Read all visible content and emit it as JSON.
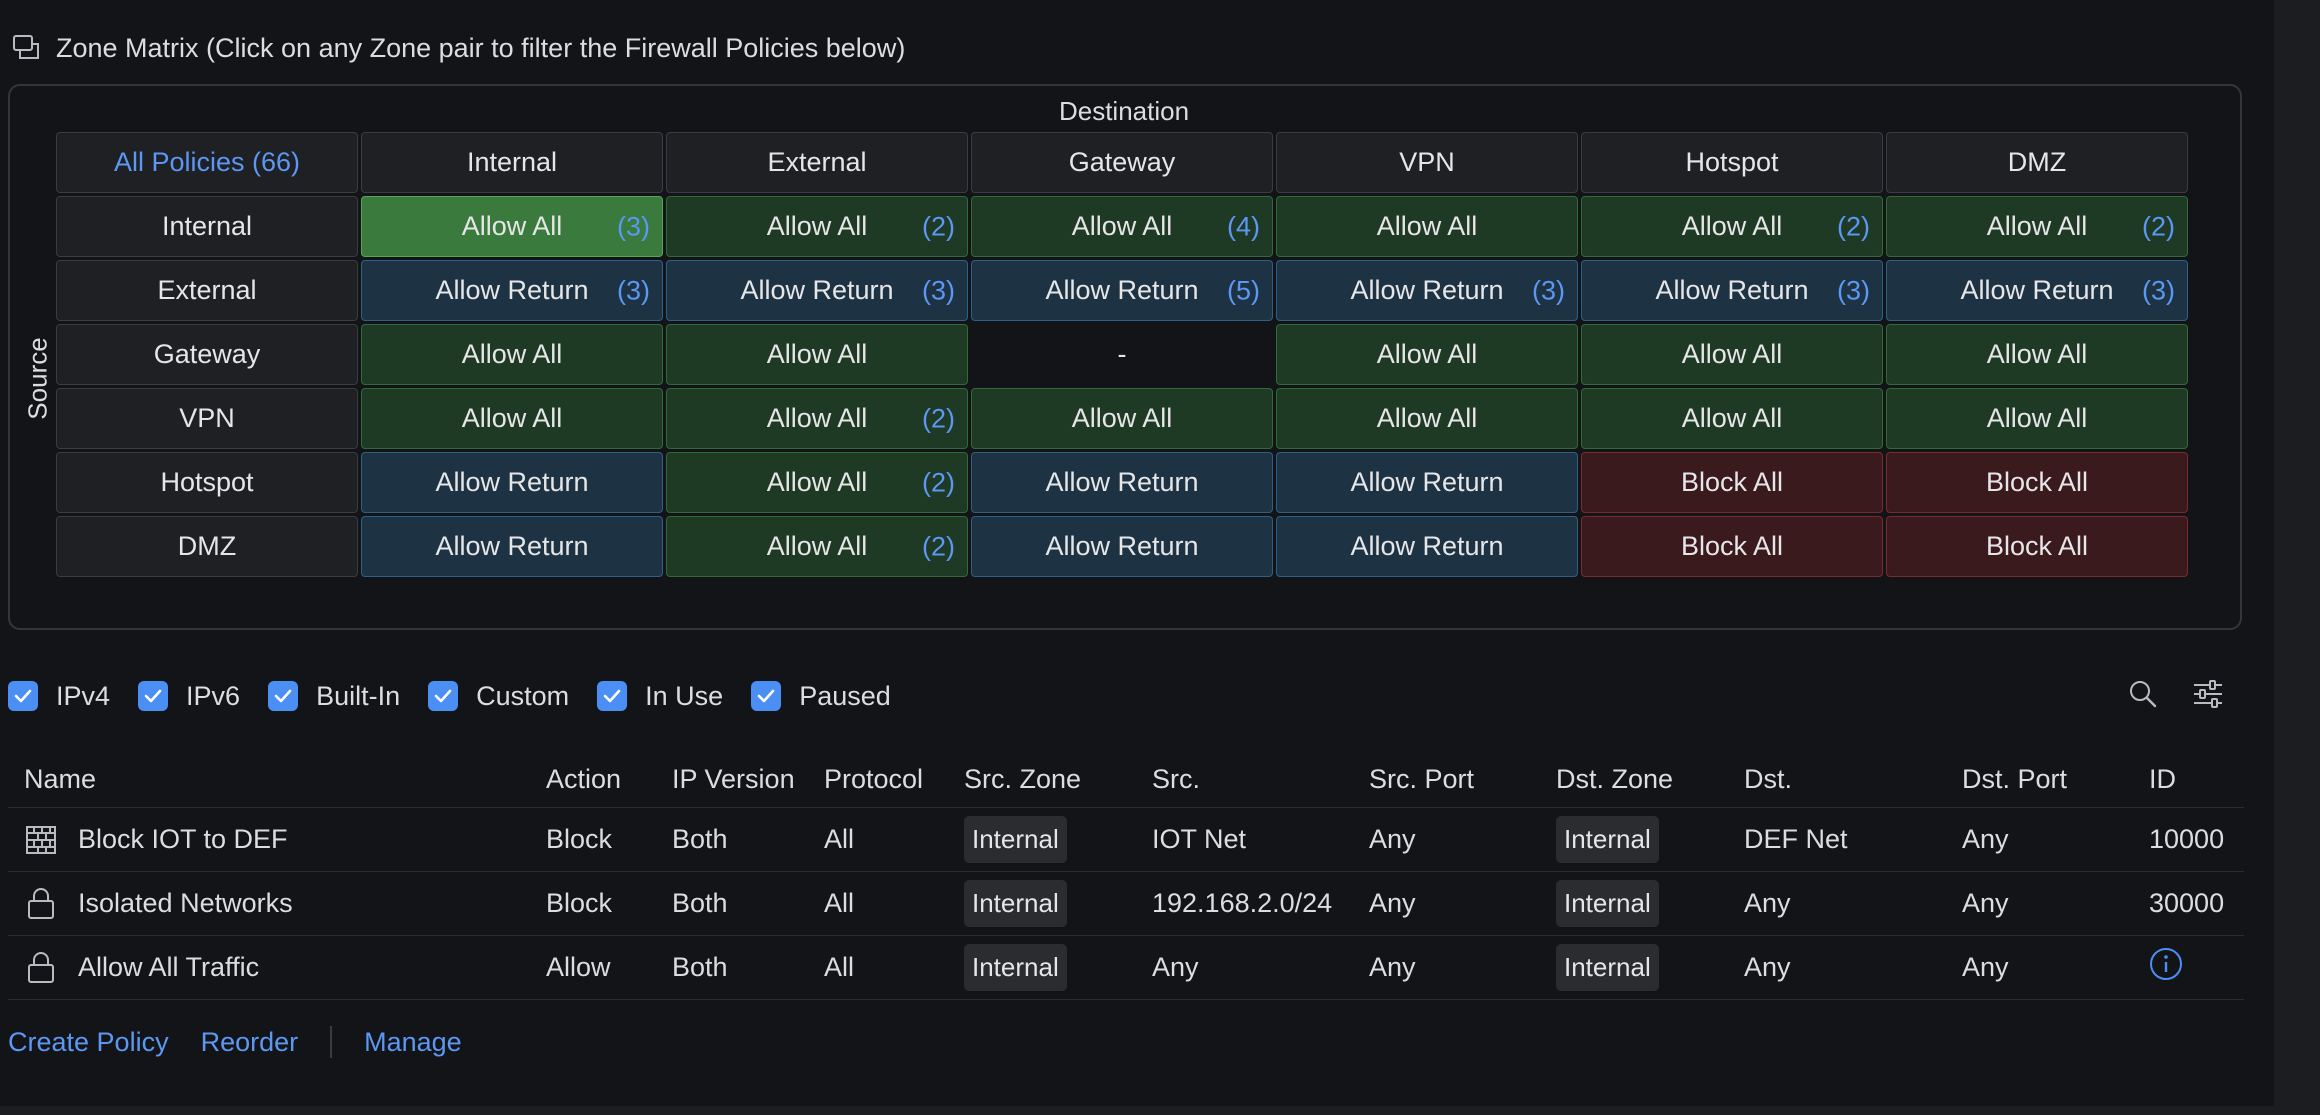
{
  "matrix": {
    "heading": "Zone Matrix (Click on any Zone pair to filter the Firewall Policies below)",
    "destination_label": "Destination",
    "source_label": "Source",
    "all_policies_label": "All Policies (66)",
    "zones": [
      "Internal",
      "External",
      "Gateway",
      "VPN",
      "Hotspot",
      "DMZ"
    ],
    "rows": [
      {
        "source": "Internal",
        "cells": [
          {
            "label": "Allow All",
            "count": "(3)",
            "kind": "allow",
            "selected": true
          },
          {
            "label": "Allow All",
            "count": "(2)",
            "kind": "allow"
          },
          {
            "label": "Allow All",
            "count": "(4)",
            "kind": "allow"
          },
          {
            "label": "Allow All",
            "count": "",
            "kind": "allow"
          },
          {
            "label": "Allow All",
            "count": "(2)",
            "kind": "allow"
          },
          {
            "label": "Allow All",
            "count": "(2)",
            "kind": "allow"
          }
        ]
      },
      {
        "source": "External",
        "cells": [
          {
            "label": "Allow Return",
            "count": "(3)",
            "kind": "ret"
          },
          {
            "label": "Allow Return",
            "count": "(3)",
            "kind": "ret"
          },
          {
            "label": "Allow Return",
            "count": "(5)",
            "kind": "ret"
          },
          {
            "label": "Allow Return",
            "count": "(3)",
            "kind": "ret"
          },
          {
            "label": "Allow Return",
            "count": "(3)",
            "kind": "ret"
          },
          {
            "label": "Allow Return",
            "count": "(3)",
            "kind": "ret"
          }
        ]
      },
      {
        "source": "Gateway",
        "cells": [
          {
            "label": "Allow All",
            "count": "",
            "kind": "allow"
          },
          {
            "label": "Allow All",
            "count": "",
            "kind": "allow"
          },
          {
            "label": "-",
            "count": "",
            "kind": "none"
          },
          {
            "label": "Allow All",
            "count": "",
            "kind": "allow"
          },
          {
            "label": "Allow All",
            "count": "",
            "kind": "allow"
          },
          {
            "label": "Allow All",
            "count": "",
            "kind": "allow"
          }
        ]
      },
      {
        "source": "VPN",
        "cells": [
          {
            "label": "Allow All",
            "count": "",
            "kind": "allow"
          },
          {
            "label": "Allow All",
            "count": "(2)",
            "kind": "allow"
          },
          {
            "label": "Allow All",
            "count": "",
            "kind": "allow"
          },
          {
            "label": "Allow All",
            "count": "",
            "kind": "allow"
          },
          {
            "label": "Allow All",
            "count": "",
            "kind": "allow"
          },
          {
            "label": "Allow All",
            "count": "",
            "kind": "allow"
          }
        ]
      },
      {
        "source": "Hotspot",
        "cells": [
          {
            "label": "Allow Return",
            "count": "",
            "kind": "ret"
          },
          {
            "label": "Allow All",
            "count": "(2)",
            "kind": "allow"
          },
          {
            "label": "Allow Return",
            "count": "",
            "kind": "ret"
          },
          {
            "label": "Allow Return",
            "count": "",
            "kind": "ret"
          },
          {
            "label": "Block All",
            "count": "",
            "kind": "block"
          },
          {
            "label": "Block All",
            "count": "",
            "kind": "block"
          }
        ]
      },
      {
        "source": "DMZ",
        "cells": [
          {
            "label": "Allow Return",
            "count": "",
            "kind": "ret"
          },
          {
            "label": "Allow All",
            "count": "(2)",
            "kind": "allow"
          },
          {
            "label": "Allow Return",
            "count": "",
            "kind": "ret"
          },
          {
            "label": "Allow Return",
            "count": "",
            "kind": "ret"
          },
          {
            "label": "Block All",
            "count": "",
            "kind": "block"
          },
          {
            "label": "Block All",
            "count": "",
            "kind": "block"
          }
        ]
      }
    ]
  },
  "filters": [
    {
      "label": "IPv4",
      "checked": true
    },
    {
      "label": "IPv6",
      "checked": true
    },
    {
      "label": "Built-In",
      "checked": true
    },
    {
      "label": "Custom",
      "checked": true
    },
    {
      "label": "In Use",
      "checked": true
    },
    {
      "label": "Paused",
      "checked": true
    }
  ],
  "table": {
    "headers": [
      "Name",
      "Action",
      "IP Version",
      "Protocol",
      "Src. Zone",
      "Src.",
      "Src. Port",
      "Dst. Zone",
      "Dst.",
      "Dst. Port",
      "ID"
    ],
    "rows": [
      {
        "icon": "firewall-brick-icon",
        "name": "Block IOT to DEF",
        "action": "Block",
        "ip_version": "Both",
        "protocol": "All",
        "src_zone": "Internal",
        "src": "IOT Net",
        "src_port": "Any",
        "dst_zone": "Internal",
        "dst": "DEF Net",
        "dst_port": "Any",
        "id": "10000"
      },
      {
        "icon": "lock-icon",
        "name": "Isolated Networks",
        "action": "Block",
        "ip_version": "Both",
        "protocol": "All",
        "src_zone": "Internal",
        "src": "192.168.2.0/24",
        "src_port": "Any",
        "dst_zone": "Internal",
        "dst": "Any",
        "dst_port": "Any",
        "id": "30000"
      },
      {
        "icon": "lock-icon",
        "name": "Allow All Traffic",
        "action": "Allow",
        "ip_version": "Both",
        "protocol": "All",
        "src_zone": "Internal",
        "src": "Any",
        "src_port": "Any",
        "dst_zone": "Internal",
        "dst": "Any",
        "dst_port": "Any",
        "id": ""
      }
    ]
  },
  "footer": {
    "create_policy": "Create Policy",
    "reorder": "Reorder",
    "manage": "Manage"
  },
  "colors": {
    "accent": "#4b8ff5",
    "allow": "#1f3a24",
    "allow_selected": "#3a7a3c",
    "allow_return": "#1d3344",
    "block": "#3a1a1c"
  }
}
